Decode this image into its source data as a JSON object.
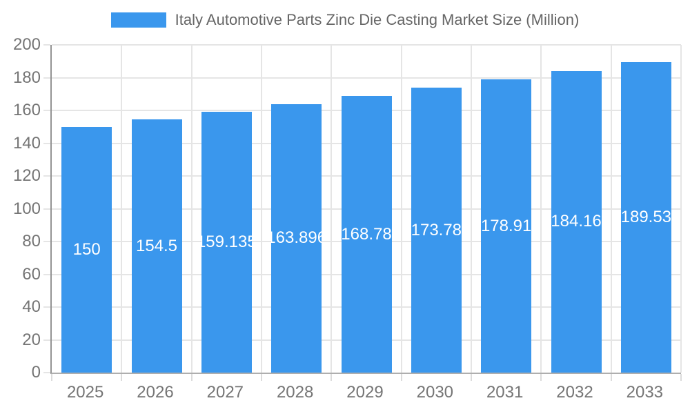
{
  "chart_data": {
    "type": "bar",
    "title": "Italy Automotive Parts Zinc Die Casting Market Size (Million)",
    "categories": [
      "2025",
      "2026",
      "2027",
      "2028",
      "2029",
      "2030",
      "2031",
      "2032",
      "2033"
    ],
    "values": [
      150,
      154.5,
      159.135,
      163.896,
      168.78,
      173.78,
      178.91,
      184.16,
      189.53
    ],
    "bar_labels": [
      "150",
      "154.5",
      "159.135",
      "163.896",
      "168.78",
      "173.78",
      "178.91",
      "184.16",
      "189.53"
    ],
    "xlabel": "",
    "ylabel": "",
    "ylim": [
      0,
      200
    ],
    "ytick_step": 20,
    "y_tick_labels": [
      "0",
      "20",
      "40",
      "60",
      "80",
      "100",
      "120",
      "140",
      "160",
      "180",
      "200"
    ],
    "grid": true,
    "legend_position": "top",
    "bar_color": "#3A97ED",
    "bar_label_color": "#ffffff",
    "axis_label_color": "#757575",
    "title_color": "#666666",
    "gridline_color": "#e5e5e5"
  }
}
